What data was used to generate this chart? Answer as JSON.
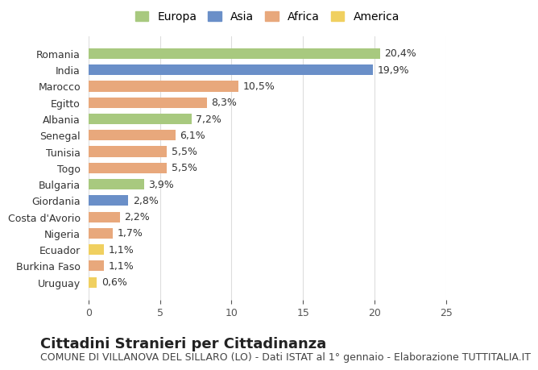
{
  "countries": [
    "Romania",
    "India",
    "Marocco",
    "Egitto",
    "Albania",
    "Senegal",
    "Tunisia",
    "Togo",
    "Bulgaria",
    "Giordania",
    "Costa d'Avorio",
    "Nigeria",
    "Ecuador",
    "Burkina Faso",
    "Uruguay"
  ],
  "values": [
    20.4,
    19.9,
    10.5,
    8.3,
    7.2,
    6.1,
    5.5,
    5.5,
    3.9,
    2.8,
    2.2,
    1.7,
    1.1,
    1.1,
    0.6
  ],
  "labels": [
    "20,4%",
    "19,9%",
    "10,5%",
    "8,3%",
    "7,2%",
    "6,1%",
    "5,5%",
    "5,5%",
    "3,9%",
    "2,8%",
    "2,2%",
    "1,7%",
    "1,1%",
    "1,1%",
    "0,6%"
  ],
  "continents": [
    "Europa",
    "Asia",
    "Africa",
    "Africa",
    "Europa",
    "Africa",
    "Africa",
    "Africa",
    "Europa",
    "Asia",
    "Africa",
    "Africa",
    "America",
    "Africa",
    "America"
  ],
  "colors": {
    "Europa": "#a8c97f",
    "Asia": "#6a8fc8",
    "Africa": "#e8a87c",
    "America": "#f0d060"
  },
  "legend_order": [
    "Europa",
    "Asia",
    "Africa",
    "America"
  ],
  "title": "Cittadini Stranieri per Cittadinanza",
  "subtitle": "COMUNE DI VILLANOVA DEL SILLARO (LO) - Dati ISTAT al 1° gennaio - Elaborazione TUTTITALIA.IT",
  "xlim": [
    0,
    25
  ],
  "xticks": [
    0,
    5,
    10,
    15,
    20,
    25
  ],
  "background_color": "#ffffff",
  "grid_color": "#dddddd",
  "bar_height": 0.65,
  "title_fontsize": 13,
  "subtitle_fontsize": 9,
  "label_fontsize": 9,
  "tick_fontsize": 9,
  "legend_fontsize": 10
}
